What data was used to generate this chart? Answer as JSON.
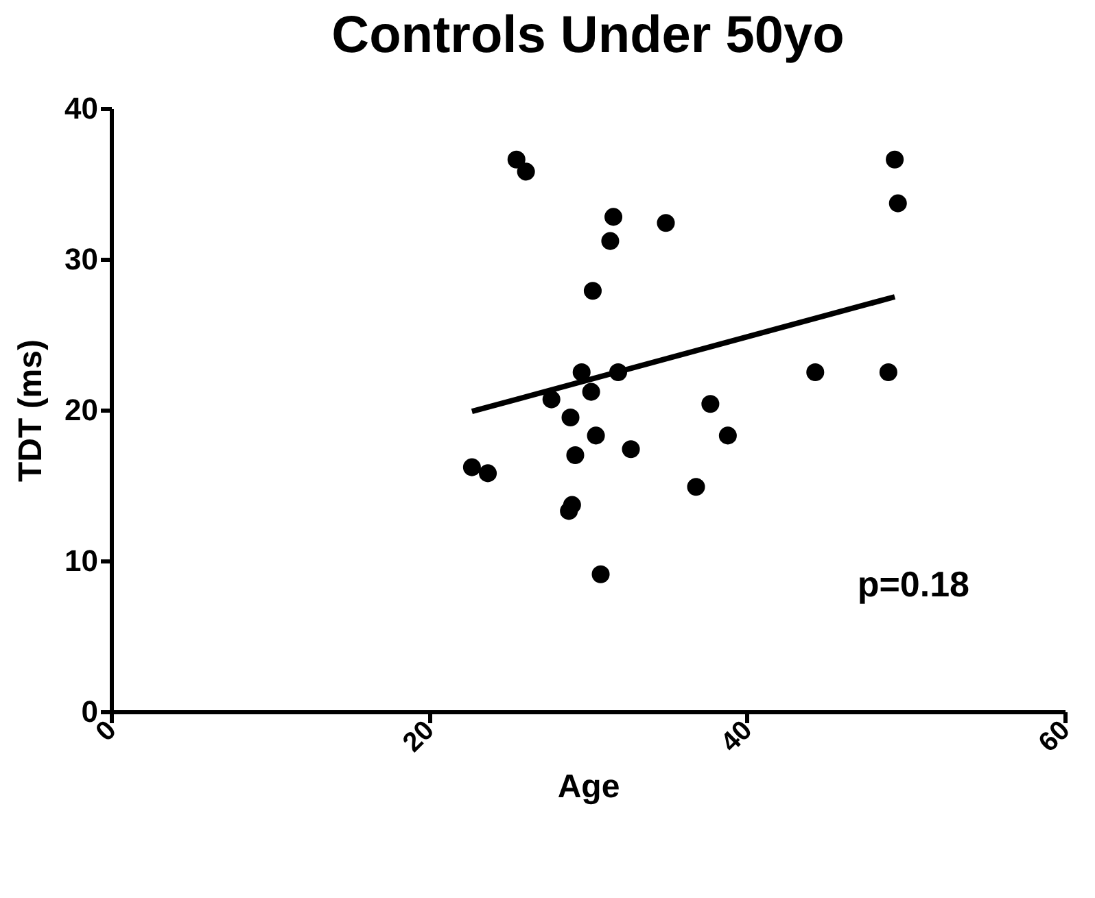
{
  "chart_data": {
    "type": "scatter",
    "title": "Controls Under 50yo",
    "xlabel": "Age",
    "ylabel": "TDT (ms)",
    "xlim": [
      0,
      60
    ],
    "xticks": [
      0,
      20,
      40,
      60
    ],
    "ylim": [
      0,
      40
    ],
    "yticks": [
      0,
      10,
      20,
      30,
      40
    ],
    "grid": false,
    "annotations": [
      "p=0.18"
    ],
    "series": [
      {
        "color": "#000000",
        "marker": "circle",
        "x": [
          25.5,
          26.1,
          31.6,
          34.9,
          31.4,
          30.3,
          49.3,
          49.5,
          29.6,
          31.9,
          44.3,
          48.9,
          27.7,
          30.2,
          28.9,
          37.7,
          30.5,
          38.8,
          32.7,
          29.2,
          22.7,
          23.7,
          36.8,
          29.0,
          28.8,
          30.8
        ],
        "values": [
          36.6,
          35.8,
          32.8,
          32.4,
          31.2,
          27.9,
          36.6,
          33.7,
          22.5,
          22.5,
          22.5,
          22.5,
          20.7,
          21.2,
          19.5,
          20.4,
          18.3,
          18.3,
          17.4,
          17.0,
          16.2,
          15.8,
          14.9,
          13.7,
          13.3,
          9.1
        ]
      },
      {
        "type": "line",
        "color": "#000000",
        "line_style": "solid",
        "marker": "none",
        "x": [
          22.7,
          49.3
        ],
        "values": [
          19.9,
          27.5
        ]
      }
    ]
  }
}
